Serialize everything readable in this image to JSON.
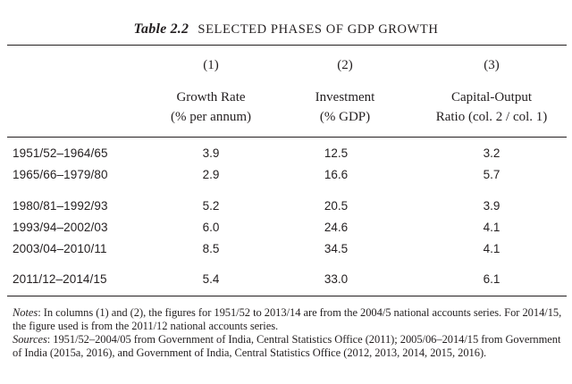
{
  "table": {
    "number": "Table 2.2",
    "title": "SELECTED PHASES OF GDP GROWTH",
    "columns": [
      {
        "index": "(1)",
        "line1": "Growth Rate",
        "line2": "(% per annum)"
      },
      {
        "index": "(2)",
        "line1": "Investment",
        "line2": "(% GDP)"
      },
      {
        "index": "(3)",
        "line1": "Capital-Output",
        "line2": "Ratio (col. 2 / col. 1)"
      }
    ],
    "rows": [
      {
        "period": "1951/52–1964/65",
        "growth": "3.9",
        "investment": "12.5",
        "ratio": "3.2"
      },
      {
        "period": "1965/66–1979/80",
        "growth": "2.9",
        "investment": "16.6",
        "ratio": "5.7"
      },
      {
        "period": "1980/81–1992/93",
        "growth": "5.2",
        "investment": "20.5",
        "ratio": "3.9"
      },
      {
        "period": "1993/94–2002/03",
        "growth": "6.0",
        "investment": "24.6",
        "ratio": "4.1"
      },
      {
        "period": "2003/04–2010/11",
        "growth": "8.5",
        "investment": "34.5",
        "ratio": "4.1"
      },
      {
        "period": "2011/12–2014/15",
        "growth": "5.4",
        "investment": "33.0",
        "ratio": "6.1"
      }
    ]
  },
  "notes": {
    "notes_label": "Notes",
    "notes_text": ": In columns (1) and (2), the figures for 1951/52 to 2013/14 are from the 2004/5 national accounts series. For 2014/15, the figure used is from the 2011/12 national accounts series.",
    "sources_label": "Sources",
    "sources_text": ": 1951/52–2004/05 from Government of India, Central Statistics Office (2011); 2005/06–2014/15 from Government of India (2015a, 2016), and Government of India, Central Statistics Office (2012, 2013, 2014, 2015, 2016)."
  }
}
